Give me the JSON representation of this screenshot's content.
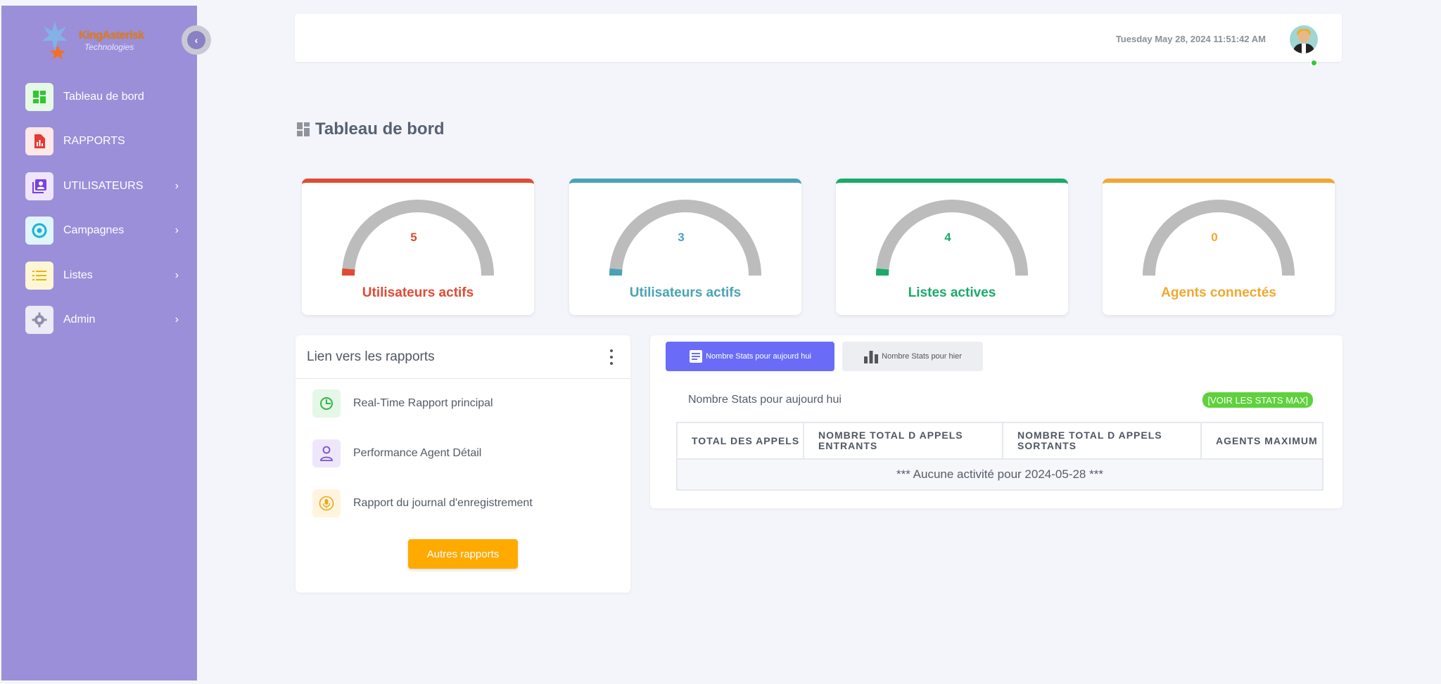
{
  "logo": {
    "name": "KingAsterisk",
    "subtitle": "Technologies"
  },
  "sidebar": {
    "items": [
      {
        "label": "Tableau de bord",
        "icon": "dashboard-icon",
        "color": "#2ec72e",
        "bg": "#e6f9e6",
        "has_children": false
      },
      {
        "label": "RAPPORTS",
        "icon": "report-file-icon",
        "color": "#e53935",
        "bg": "#fde7e7",
        "has_children": false
      },
      {
        "label": "UTILISATEURS",
        "icon": "contacts-icon",
        "color": "#7b3fe4",
        "bg": "#efe6fd",
        "has_children": true
      },
      {
        "label": "Campagnes",
        "icon": "target-icon",
        "color": "#17b4d6",
        "bg": "#e0f6fb",
        "has_children": true
      },
      {
        "label": "Listes",
        "icon": "list-icon",
        "color": "#e8b400",
        "bg": "#fff6d6",
        "has_children": true
      },
      {
        "label": "Admin",
        "icon": "gear-icon",
        "color": "#8f8fa8",
        "bg": "#ecebf6",
        "has_children": true
      }
    ],
    "chevron": "›"
  },
  "header": {
    "datetime": "Tuesday May 28, 2024 11:51:42 AM"
  },
  "page": {
    "title": "Tableau de bord"
  },
  "stat_cards": [
    {
      "value": "5",
      "label": "Utilisateurs actifs",
      "color": "#e04b35",
      "gauge_fraction": 0.03
    },
    {
      "value": "3",
      "label": "Utilisateurs actifs",
      "color": "#4aa3b5",
      "gauge_fraction": 0.03
    },
    {
      "value": "4",
      "label": "Listes actives",
      "color": "#1aaa6b",
      "gauge_fraction": 0.03
    },
    {
      "value": "0",
      "label": "Agents connectés",
      "color": "#f0a830",
      "gauge_fraction": 0
    }
  ],
  "reports": {
    "title": "Lien vers les rapports",
    "items": [
      {
        "label": "Real-Time Rapport principal",
        "icon": "clock-pie-icon",
        "color": "#36b24a",
        "bg": "#e5f7e7"
      },
      {
        "label": "Performance Agent Détail",
        "icon": "user-icon",
        "color": "#7b4fd0",
        "bg": "#eee7fb"
      },
      {
        "label": "Rapport du journal d'enregistrement",
        "icon": "microphone-icon",
        "color": "#efa71a",
        "bg": "#fff5df"
      }
    ],
    "button": "Autres rapports"
  },
  "stats": {
    "tabs": [
      {
        "label": "Nombre Stats pour aujourd hui",
        "icon": "article-icon"
      },
      {
        "label": "Nombre Stats pour hier",
        "icon": "bar-chart-icon"
      }
    ],
    "subtitle": "Nombre Stats pour aujourd hui",
    "max_button": "[VOIR LES STATS MAX]",
    "columns": [
      "TOTAL DES APPELS",
      "NOMBRE TOTAL D APPELS ENTRANTS",
      "NOMBRE TOTAL D APPELS SORTANTS",
      "AGENTS MAXIMUM"
    ],
    "empty_message": "*** Aucune activité pour 2024-05-28 ***"
  }
}
